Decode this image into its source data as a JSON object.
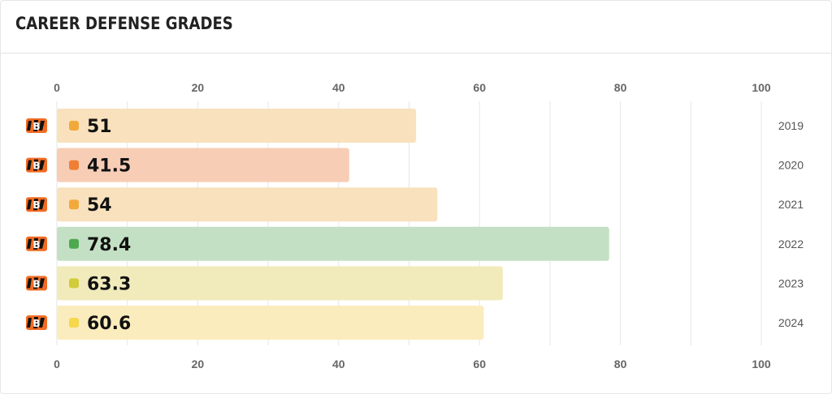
{
  "header": {
    "title": "CAREER DEFENSE GRADES"
  },
  "team_logo": {
    "icon": "bengals-stripe-logo-icon",
    "text": "B"
  },
  "chart_data": {
    "type": "bar",
    "orientation": "horizontal",
    "title": "CAREER DEFENSE GRADES",
    "categories": [
      "2019",
      "2020",
      "2021",
      "2022",
      "2023",
      "2024"
    ],
    "values": [
      51,
      41.5,
      54,
      78.4,
      63.3,
      60.6
    ],
    "value_labels": [
      "51",
      "41.5",
      "54",
      "78.4",
      "63.3",
      "60.6"
    ],
    "xlim": [
      0,
      100
    ],
    "xticks": [
      "0",
      "20",
      "40",
      "60",
      "80",
      "100"
    ],
    "axis_ticks_position": "top-and-bottom",
    "grid": true,
    "bar_colors": [
      "#f9e1bd",
      "#f8cdb5",
      "#f9e1bd",
      "#c4e0c4",
      "#f1ebbc",
      "#faecbd"
    ],
    "dot_colors": [
      "#f2a93b",
      "#ee7f36",
      "#f2a93b",
      "#4da84f",
      "#d2cb3a",
      "#f7d74c"
    ]
  }
}
